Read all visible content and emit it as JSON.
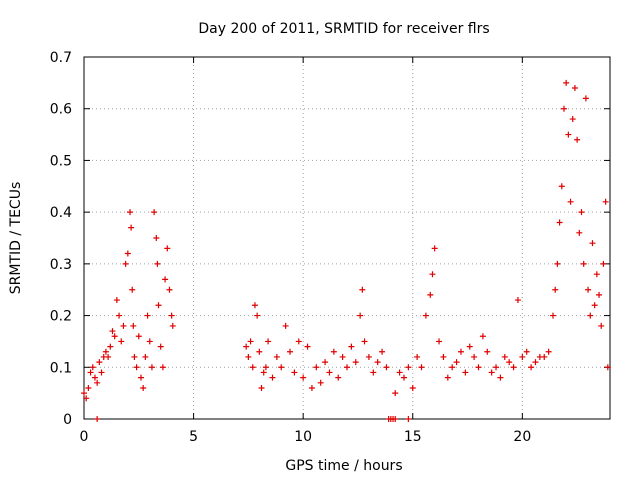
{
  "chart_data": {
    "type": "scatter",
    "title": "Day 200 of 2011, SRMTID for receiver flrs",
    "xlabel": "GPS time / hours",
    "ylabel": "SRMTID / TECUs",
    "xlim": [
      0,
      24
    ],
    "ylim": [
      0,
      0.7
    ],
    "x_ticks": [
      0,
      5,
      10,
      15,
      20
    ],
    "y_ticks": [
      0,
      0.1,
      0.2,
      0.3,
      0.4,
      0.5,
      0.6,
      0.7
    ],
    "x_tick_labels": [
      "0",
      "5",
      "10",
      "15",
      "20"
    ],
    "y_tick_labels": [
      "0",
      "0.1",
      "0.2",
      "0.3",
      "0.4",
      "0.5",
      "0.6",
      "0.7"
    ],
    "grid": true,
    "marker": "+",
    "color": "#e00000",
    "series": [
      {
        "name": "SRMTID",
        "x": [
          0.0,
          0.1,
          0.2,
          0.3,
          0.4,
          0.5,
          0.6,
          0.7,
          0.8,
          0.9,
          1.0,
          1.1,
          1.2,
          1.3,
          1.4,
          1.5,
          1.6,
          1.7,
          1.8,
          1.9,
          2.0,
          2.1,
          2.15,
          2.2,
          2.25,
          2.3,
          2.4,
          2.5,
          2.6,
          2.7,
          2.8,
          2.9,
          3.0,
          3.1,
          3.2,
          3.3,
          3.35,
          3.4,
          3.5,
          3.6,
          3.7,
          3.8,
          3.9,
          4.0,
          4.05,
          7.4,
          7.5,
          7.6,
          7.7,
          7.8,
          7.9,
          8.0,
          8.1,
          8.2,
          8.3,
          8.4,
          8.6,
          8.8,
          9.0,
          9.2,
          9.4,
          9.6,
          9.8,
          10.0,
          10.2,
          10.4,
          10.6,
          10.8,
          11.0,
          11.2,
          11.4,
          11.6,
          11.8,
          12.0,
          12.2,
          12.4,
          12.6,
          12.7,
          12.8,
          13.0,
          13.2,
          13.4,
          13.6,
          13.8,
          14.2,
          14.4,
          14.6,
          14.8,
          15.0,
          15.2,
          15.4,
          15.6,
          15.8,
          15.9,
          16.0,
          16.2,
          16.4,
          16.6,
          16.8,
          17.0,
          17.2,
          17.4,
          17.6,
          17.8,
          18.0,
          18.2,
          18.4,
          18.6,
          18.8,
          19.0,
          19.2,
          19.4,
          19.6,
          19.8,
          20.0,
          20.2,
          20.4,
          20.6,
          20.8,
          21.0,
          21.2,
          21.4,
          21.5,
          21.6,
          21.7,
          21.8,
          21.9,
          22.0,
          22.1,
          22.2,
          22.3,
          22.4,
          22.5,
          22.6,
          22.7,
          22.8,
          22.9,
          23.0,
          23.1,
          23.2,
          23.3,
          23.4,
          23.5,
          23.6,
          23.7,
          23.8,
          23.9,
          0.6,
          13.9,
          14.0,
          14.1,
          14.2,
          14.8
        ],
        "y": [
          0.05,
          0.04,
          0.06,
          0.09,
          0.1,
          0.08,
          0.07,
          0.11,
          0.09,
          0.12,
          0.13,
          0.12,
          0.14,
          0.17,
          0.16,
          0.23,
          0.2,
          0.15,
          0.18,
          0.3,
          0.32,
          0.4,
          0.37,
          0.25,
          0.18,
          0.12,
          0.1,
          0.16,
          0.08,
          0.06,
          0.12,
          0.2,
          0.15,
          0.1,
          0.4,
          0.35,
          0.3,
          0.22,
          0.14,
          0.1,
          0.27,
          0.33,
          0.25,
          0.2,
          0.18,
          0.14,
          0.12,
          0.15,
          0.1,
          0.22,
          0.2,
          0.13,
          0.06,
          0.09,
          0.1,
          0.15,
          0.08,
          0.12,
          0.1,
          0.18,
          0.13,
          0.09,
          0.15,
          0.08,
          0.14,
          0.06,
          0.1,
          0.07,
          0.11,
          0.09,
          0.13,
          0.08,
          0.12,
          0.1,
          0.14,
          0.11,
          0.2,
          0.25,
          0.15,
          0.12,
          0.09,
          0.11,
          0.13,
          0.1,
          0.05,
          0.09,
          0.08,
          0.1,
          0.06,
          0.12,
          0.1,
          0.2,
          0.24,
          0.28,
          0.33,
          0.15,
          0.12,
          0.08,
          0.1,
          0.11,
          0.13,
          0.09,
          0.14,
          0.12,
          0.1,
          0.16,
          0.13,
          0.09,
          0.1,
          0.08,
          0.12,
          0.11,
          0.1,
          0.23,
          0.12,
          0.13,
          0.1,
          0.11,
          0.12,
          0.12,
          0.13,
          0.2,
          0.25,
          0.3,
          0.38,
          0.45,
          0.6,
          0.65,
          0.55,
          0.42,
          0.58,
          0.64,
          0.54,
          0.36,
          0.4,
          0.3,
          0.62,
          0.25,
          0.2,
          0.34,
          0.22,
          0.28,
          0.24,
          0.18,
          0.3,
          0.42,
          0.1,
          0.0,
          0.0,
          0.0,
          0.0,
          0.0,
          0.0
        ]
      }
    ]
  }
}
